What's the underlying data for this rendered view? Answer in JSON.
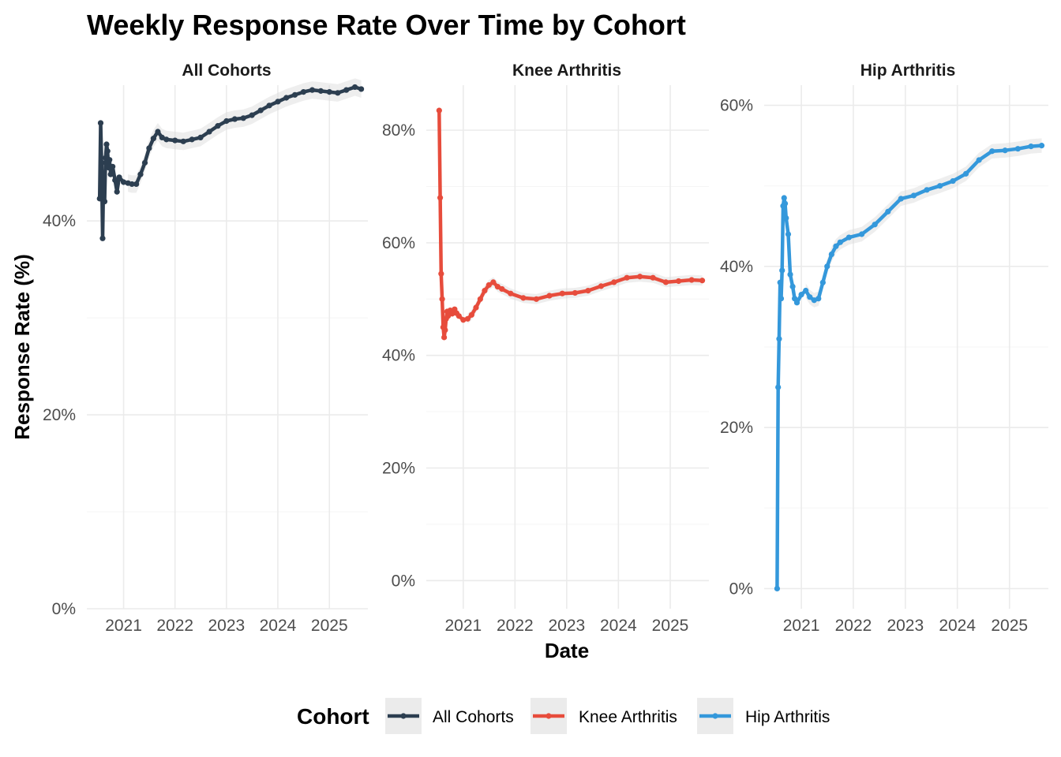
{
  "chart_data": {
    "type": "line",
    "title": "Weekly Response Rate Over Time by Cohort",
    "xlabel": "Date",
    "ylabel": "Response Rate (%)",
    "x_ticks": [
      "2021",
      "2022",
      "2023",
      "2024",
      "2025"
    ],
    "legend": {
      "title": "Cohort",
      "position": "bottom"
    },
    "grid": true,
    "facets": [
      {
        "name": "All Cohorts",
        "color": "#2c3e50",
        "ylim": [
          0,
          54
        ],
        "y_ticks": [
          0,
          20,
          40
        ],
        "y_tick_labels": [
          "0%",
          "20%",
          "40%"
        ],
        "xlim": [
          "2020-04-15",
          "2025-10-01"
        ],
        "x": [
          "2020-07-15",
          "2020-07-22",
          "2020-07-29",
          "2020-08-05",
          "2020-08-12",
          "2020-08-19",
          "2020-08-26",
          "2020-09-02",
          "2020-09-09",
          "2020-09-16",
          "2020-09-23",
          "2020-10-01",
          "2020-10-15",
          "2020-11-01",
          "2020-11-15",
          "2020-12-01",
          "2021-01-01",
          "2021-02-01",
          "2021-03-01",
          "2021-04-01",
          "2021-05-01",
          "2021-06-01",
          "2021-07-01",
          "2021-08-01",
          "2021-09-01",
          "2021-10-01",
          "2021-11-01",
          "2022-01-01",
          "2022-03-01",
          "2022-05-01",
          "2022-07-01",
          "2022-09-01",
          "2022-11-01",
          "2023-01-01",
          "2023-03-01",
          "2023-05-01",
          "2023-07-01",
          "2023-09-01",
          "2023-11-01",
          "2024-01-01",
          "2024-03-01",
          "2024-05-01",
          "2024-07-01",
          "2024-09-01",
          "2024-11-01",
          "2025-01-01",
          "2025-03-01",
          "2025-05-01",
          "2025-07-01",
          "2025-08-15"
        ],
        "values": [
          42.3,
          50.1,
          46.0,
          38.2,
          44.6,
          42.0,
          46.5,
          47.9,
          47.2,
          45.5,
          46.3,
          44.8,
          45.6,
          44.2,
          43.0,
          44.5,
          44.0,
          43.9,
          43.8,
          43.8,
          44.8,
          46.0,
          47.5,
          48.5,
          49.2,
          48.6,
          48.4,
          48.3,
          48.2,
          48.4,
          48.6,
          49.2,
          49.8,
          50.3,
          50.5,
          50.6,
          50.9,
          51.4,
          51.9,
          52.3,
          52.7,
          53.0,
          53.3,
          53.5,
          53.4,
          53.3,
          53.2,
          53.5,
          53.8,
          53.6
        ]
      },
      {
        "name": "Knee Arthritis",
        "color": "#e74c3c",
        "ylim": [
          -5,
          88
        ],
        "y_ticks": [
          0,
          20,
          40,
          60,
          80
        ],
        "y_tick_labels": [
          "0%",
          "20%",
          "40%",
          "60%",
          "80%"
        ],
        "xlim": [
          "2020-04-15",
          "2025-10-01"
        ],
        "x": [
          "2020-07-15",
          "2020-07-22",
          "2020-07-29",
          "2020-08-05",
          "2020-08-12",
          "2020-08-19",
          "2020-08-26",
          "2020-09-02",
          "2020-09-09",
          "2020-09-16",
          "2020-10-01",
          "2020-10-15",
          "2020-11-01",
          "2020-11-15",
          "2020-12-01",
          "2021-01-01",
          "2021-02-01",
          "2021-03-01",
          "2021-04-01",
          "2021-05-01",
          "2021-06-01",
          "2021-07-01",
          "2021-08-01",
          "2021-09-01",
          "2021-10-01",
          "2021-12-01",
          "2022-03-01",
          "2022-06-01",
          "2022-09-01",
          "2022-12-01",
          "2023-03-01",
          "2023-06-01",
          "2023-09-01",
          "2023-12-01",
          "2024-03-01",
          "2024-06-01",
          "2024-09-01",
          "2024-12-01",
          "2025-03-01",
          "2025-06-01",
          "2025-08-15"
        ],
        "values": [
          83.5,
          68.0,
          54.5,
          50.0,
          45.0,
          43.2,
          44.5,
          46.5,
          47.8,
          47.0,
          48.0,
          47.4,
          48.2,
          47.5,
          47.0,
          46.3,
          46.5,
          47.2,
          48.5,
          50.0,
          51.5,
          52.5,
          53.0,
          52.2,
          51.8,
          51.0,
          50.2,
          50.0,
          50.6,
          51.0,
          51.1,
          51.5,
          52.3,
          53.0,
          53.8,
          54.0,
          53.8,
          53.0,
          53.2,
          53.4,
          53.3
        ]
      },
      {
        "name": "Hip Arthritis",
        "color": "#3498db",
        "ylim": [
          -2.5,
          62.5
        ],
        "y_ticks": [
          0,
          20,
          40,
          60
        ],
        "y_tick_labels": [
          "0%",
          "20%",
          "40%",
          "60%"
        ],
        "xlim": [
          "2020-04-15",
          "2025-10-01"
        ],
        "x": [
          "2020-07-15",
          "2020-07-22",
          "2020-07-29",
          "2020-08-05",
          "2020-08-12",
          "2020-08-19",
          "2020-08-26",
          "2020-09-02",
          "2020-09-09",
          "2020-09-16",
          "2020-10-01",
          "2020-10-15",
          "2020-11-01",
          "2020-11-15",
          "2020-12-01",
          "2021-01-01",
          "2021-02-01",
          "2021-03-01",
          "2021-04-01",
          "2021-05-01",
          "2021-06-01",
          "2021-07-01",
          "2021-08-01",
          "2021-09-01",
          "2021-10-01",
          "2021-12-01",
          "2022-03-01",
          "2022-06-01",
          "2022-09-01",
          "2022-12-01",
          "2023-03-01",
          "2023-06-01",
          "2023-09-01",
          "2023-12-01",
          "2024-03-01",
          "2024-06-01",
          "2024-09-01",
          "2024-12-01",
          "2025-03-01",
          "2025-06-01",
          "2025-08-15"
        ],
        "values": [
          0.0,
          25.0,
          31.0,
          38.0,
          36.0,
          39.5,
          47.5,
          48.5,
          47.8,
          46.0,
          44.0,
          39.0,
          37.5,
          36.0,
          35.5,
          36.5,
          37.0,
          36.2,
          35.8,
          36.0,
          38.0,
          40.0,
          41.5,
          42.5,
          43.0,
          43.6,
          44.0,
          45.2,
          46.8,
          48.4,
          48.8,
          49.5,
          50.0,
          50.6,
          51.5,
          53.2,
          54.3,
          54.4,
          54.6,
          54.9,
          55.0
        ]
      }
    ]
  }
}
